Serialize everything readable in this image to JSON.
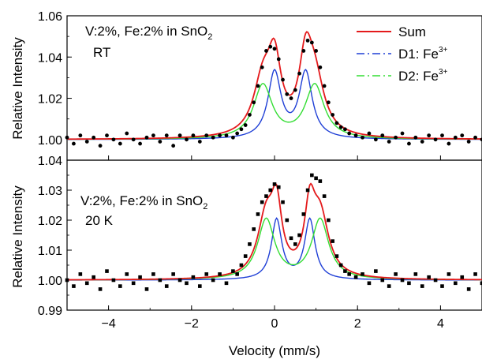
{
  "chart_data": [
    {
      "type": "scatter",
      "panel": "top",
      "annotation_line1": "V:2%, Fe:2% in SnO",
      "annotation_sub": "2",
      "annotation_line2": "RT",
      "ylabel": "Relative Intensity",
      "xlim": [
        -5,
        5
      ],
      "ylim": [
        0.99,
        1.06
      ],
      "yticks": [
        "1.00",
        "1.02",
        "1.04",
        "1.06"
      ],
      "grid": false,
      "legend_position": "top-right",
      "legend": [
        {
          "label": "Sum",
          "sup": "",
          "color": "#e41a1c",
          "dash": "solid"
        },
        {
          "label": "D1: Fe",
          "sup": "3+",
          "color": "#1f3fd6",
          "dash": "dashdot"
        },
        {
          "label": "D2: Fe",
          "sup": "3+",
          "color": "#33dd33",
          "dash": "dashdot"
        }
      ],
      "baseline": 1.0,
      "components": [
        {
          "name": "D1",
          "center": 0.0,
          "fwhm": 0.38,
          "amplitude": 0.032,
          "color": "#1f3fd6"
        },
        {
          "name": "D1",
          "center": 0.75,
          "fwhm": 0.38,
          "amplitude": 0.032,
          "color": "#1f3fd6"
        },
        {
          "name": "D2",
          "center": -0.28,
          "fwhm": 0.55,
          "amplitude": 0.026,
          "color": "#33dd33"
        },
        {
          "name": "D2",
          "center": 0.97,
          "fwhm": 0.55,
          "amplitude": 0.026,
          "color": "#33dd33"
        }
      ],
      "data": [
        [
          -5.0,
          1.001
        ],
        [
          -4.84,
          0.998
        ],
        [
          -4.68,
          1.002
        ],
        [
          -4.52,
          0.999
        ],
        [
          -4.36,
          1.001
        ],
        [
          -4.2,
          0.997
        ],
        [
          -4.04,
          1.002
        ],
        [
          -3.88,
          1.0
        ],
        [
          -3.72,
          0.998
        ],
        [
          -3.56,
          1.003
        ],
        [
          -3.4,
          1.0
        ],
        [
          -3.24,
          0.998
        ],
        [
          -3.08,
          1.001
        ],
        [
          -2.92,
          1.002
        ],
        [
          -2.76,
          0.999
        ],
        [
          -2.6,
          1.002
        ],
        [
          -2.44,
          0.997
        ],
        [
          -2.28,
          1.002
        ],
        [
          -2.12,
          1.0
        ],
        [
          -1.96,
          1.002
        ],
        [
          -1.8,
          0.999
        ],
        [
          -1.64,
          1.002
        ],
        [
          -1.48,
          1.001
        ],
        [
          -1.32,
          1.002
        ],
        [
          -1.16,
          1.002
        ],
        [
          -1.0,
          1.001
        ],
        [
          -0.9,
          1.003
        ],
        [
          -0.8,
          1.005
        ],
        [
          -0.7,
          1.007
        ],
        [
          -0.6,
          1.012
        ],
        [
          -0.5,
          1.018
        ],
        [
          -0.4,
          1.026
        ],
        [
          -0.3,
          1.035
        ],
        [
          -0.2,
          1.043
        ],
        [
          -0.1,
          1.045
        ],
        [
          0.0,
          1.044
        ],
        [
          0.1,
          1.039
        ],
        [
          0.2,
          1.029
        ],
        [
          0.3,
          1.022
        ],
        [
          0.4,
          1.02
        ],
        [
          0.5,
          1.024
        ],
        [
          0.6,
          1.032
        ],
        [
          0.7,
          1.043
        ],
        [
          0.8,
          1.048
        ],
        [
          0.9,
          1.047
        ],
        [
          1.0,
          1.043
        ],
        [
          1.1,
          1.035
        ],
        [
          1.2,
          1.026
        ],
        [
          1.3,
          1.018
        ],
        [
          1.4,
          1.012
        ],
        [
          1.5,
          1.008
        ],
        [
          1.6,
          1.006
        ],
        [
          1.7,
          1.005
        ],
        [
          1.8,
          1.003
        ],
        [
          1.96,
          1.002
        ],
        [
          2.12,
          1.001
        ],
        [
          2.28,
          1.003
        ],
        [
          2.44,
          1.0
        ],
        [
          2.6,
          1.002
        ],
        [
          2.76,
          0.999
        ],
        [
          2.92,
          1.001
        ],
        [
          3.08,
          1.003
        ],
        [
          3.24,
          0.998
        ],
        [
          3.4,
          1.001
        ],
        [
          3.56,
          0.999
        ],
        [
          3.72,
          1.002
        ],
        [
          3.88,
          1.0
        ],
        [
          4.04,
          1.002
        ],
        [
          4.2,
          0.998
        ],
        [
          4.36,
          1.001
        ],
        [
          4.52,
          1.002
        ],
        [
          4.68,
          0.999
        ],
        [
          4.84,
          1.001
        ],
        [
          5.0,
          1.0
        ]
      ]
    },
    {
      "type": "scatter",
      "panel": "bottom",
      "annotation_line1": "V:2%, Fe:2% in SnO",
      "annotation_sub": "2",
      "annotation_line2": "20 K",
      "xlabel": "Velocity (mm/s)",
      "ylabel": "Relative Intensity",
      "xlim": [
        -5,
        5
      ],
      "ylim": [
        0.99,
        1.04
      ],
      "xticks": [
        "−4",
        "−2",
        "0",
        "2",
        "4"
      ],
      "yticks": [
        "0.99",
        "1.00",
        "1.01",
        "1.02",
        "1.03",
        "1.04"
      ],
      "grid": false,
      "baseline": 1.0,
      "components": [
        {
          "name": "D1",
          "center": 0.05,
          "fwhm": 0.3,
          "amplitude": 0.02,
          "color": "#1f3fd6"
        },
        {
          "name": "D1",
          "center": 0.85,
          "fwhm": 0.3,
          "amplitude": 0.02,
          "color": "#1f3fd6"
        },
        {
          "name": "D2",
          "center": -0.2,
          "fwhm": 0.5,
          "amplitude": 0.02,
          "color": "#33dd33"
        },
        {
          "name": "D2",
          "center": 1.1,
          "fwhm": 0.5,
          "amplitude": 0.02,
          "color": "#33dd33"
        }
      ],
      "data": [
        [
          -5.0,
          1.0
        ],
        [
          -4.84,
          0.998
        ],
        [
          -4.68,
          1.002
        ],
        [
          -4.52,
          0.999
        ],
        [
          -4.36,
          1.001
        ],
        [
          -4.2,
          0.997
        ],
        [
          -4.04,
          1.003
        ],
        [
          -3.88,
          1.0
        ],
        [
          -3.72,
          0.998
        ],
        [
          -3.56,
          1.002
        ],
        [
          -3.4,
          0.999
        ],
        [
          -3.24,
          1.001
        ],
        [
          -3.08,
          0.997
        ],
        [
          -2.92,
          1.002
        ],
        [
          -2.76,
          1.0
        ],
        [
          -2.6,
          0.998
        ],
        [
          -2.44,
          1.002
        ],
        [
          -2.28,
          1.0
        ],
        [
          -2.12,
          0.999
        ],
        [
          -1.96,
          1.001
        ],
        [
          -1.8,
          0.998
        ],
        [
          -1.64,
          1.002
        ],
        [
          -1.48,
          1.0
        ],
        [
          -1.32,
          1.002
        ],
        [
          -1.16,
          0.999
        ],
        [
          -1.0,
          1.003
        ],
        [
          -0.9,
          1.002
        ],
        [
          -0.8,
          1.005
        ],
        [
          -0.7,
          1.008
        ],
        [
          -0.6,
          1.012
        ],
        [
          -0.5,
          1.017
        ],
        [
          -0.4,
          1.022
        ],
        [
          -0.3,
          1.026
        ],
        [
          -0.2,
          1.028
        ],
        [
          -0.1,
          1.03
        ],
        [
          0.0,
          1.032
        ],
        [
          0.1,
          1.031
        ],
        [
          0.2,
          1.026
        ],
        [
          0.3,
          1.02
        ],
        [
          0.4,
          1.014
        ],
        [
          0.5,
          1.012
        ],
        [
          0.6,
          1.015
        ],
        [
          0.7,
          1.022
        ],
        [
          0.8,
          1.03
        ],
        [
          0.9,
          1.035
        ],
        [
          1.0,
          1.034
        ],
        [
          1.1,
          1.033
        ],
        [
          1.2,
          1.028
        ],
        [
          1.3,
          1.02
        ],
        [
          1.4,
          1.013
        ],
        [
          1.5,
          1.008
        ],
        [
          1.6,
          1.005
        ],
        [
          1.7,
          1.003
        ],
        [
          1.8,
          1.002
        ],
        [
          1.96,
          1.001
        ],
        [
          2.12,
          1.002
        ],
        [
          2.28,
          0.999
        ],
        [
          2.44,
          1.003
        ],
        [
          2.6,
          1.0
        ],
        [
          2.76,
          0.998
        ],
        [
          2.92,
          1.002
        ],
        [
          3.08,
          1.0
        ],
        [
          3.24,
          0.999
        ],
        [
          3.4,
          1.002
        ],
        [
          3.56,
          0.998
        ],
        [
          3.72,
          1.001
        ],
        [
          3.88,
          1.0
        ],
        [
          4.04,
          0.998
        ],
        [
          4.2,
          1.002
        ],
        [
          4.36,
          0.999
        ],
        [
          4.52,
          1.001
        ],
        [
          4.68,
          0.997
        ],
        [
          4.84,
          1.002
        ],
        [
          5.0,
          0.999
        ]
      ]
    }
  ]
}
